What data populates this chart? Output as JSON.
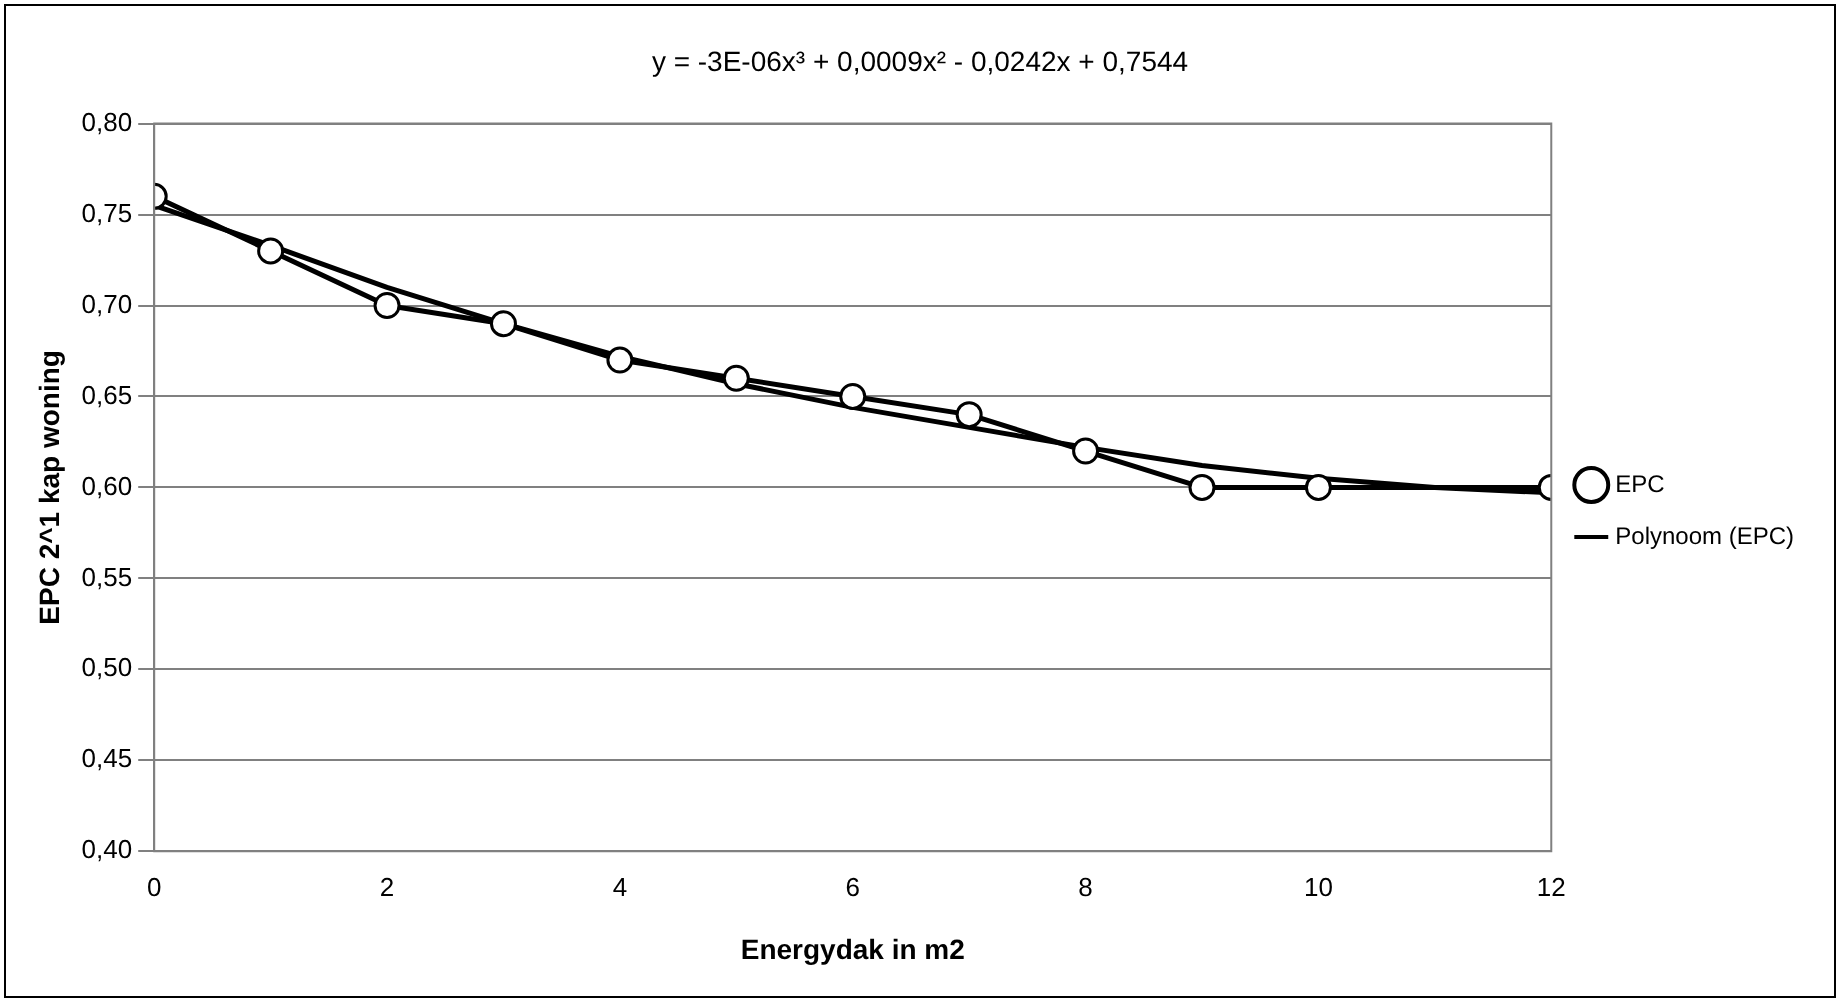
{
  "chart_data": {
    "type": "line",
    "title": "y = -3E-06x³ + 0,0009x² - 0,0242x + 0,7544",
    "xlabel": "Energydak in m2",
    "ylabel": "EPC 2^1 kap woning",
    "xlim": [
      0,
      12
    ],
    "xticks": [
      0,
      2,
      4,
      6,
      8,
      10,
      12
    ],
    "ylim": [
      0.4,
      0.8
    ],
    "yticks": [
      {
        "value": 0.4,
        "label": "0,40"
      },
      {
        "value": 0.45,
        "label": "0,45"
      },
      {
        "value": 0.5,
        "label": "0,50"
      },
      {
        "value": 0.55,
        "label": "0,55"
      },
      {
        "value": 0.6,
        "label": "0,60"
      },
      {
        "value": 0.65,
        "label": "0,65"
      },
      {
        "value": 0.7,
        "label": "0,70"
      },
      {
        "value": 0.75,
        "label": "0,75"
      },
      {
        "value": 0.8,
        "label": "0,80"
      }
    ],
    "grid": "y",
    "legend": "right",
    "series": [
      {
        "name": "EPC",
        "color": "#000000",
        "marker": "circle",
        "x": [
          0,
          1,
          2,
          3,
          4,
          5,
          6,
          7,
          8,
          9,
          10,
          12
        ],
        "values": [
          0.76,
          0.73,
          0.7,
          0.69,
          0.67,
          0.66,
          0.65,
          0.64,
          0.62,
          0.6,
          0.6,
          0.6
        ]
      },
      {
        "name": "Polynoom (EPC)",
        "color": "#000000",
        "marker": "none",
        "x": [
          0,
          1,
          2,
          3,
          4,
          5,
          6,
          7,
          8,
          9,
          10,
          11,
          12
        ],
        "values": [
          0.755,
          0.733,
          0.71,
          0.69,
          0.672,
          0.657,
          0.644,
          0.633,
          0.622,
          0.612,
          0.605,
          0.6,
          0.597
        ]
      }
    ]
  }
}
